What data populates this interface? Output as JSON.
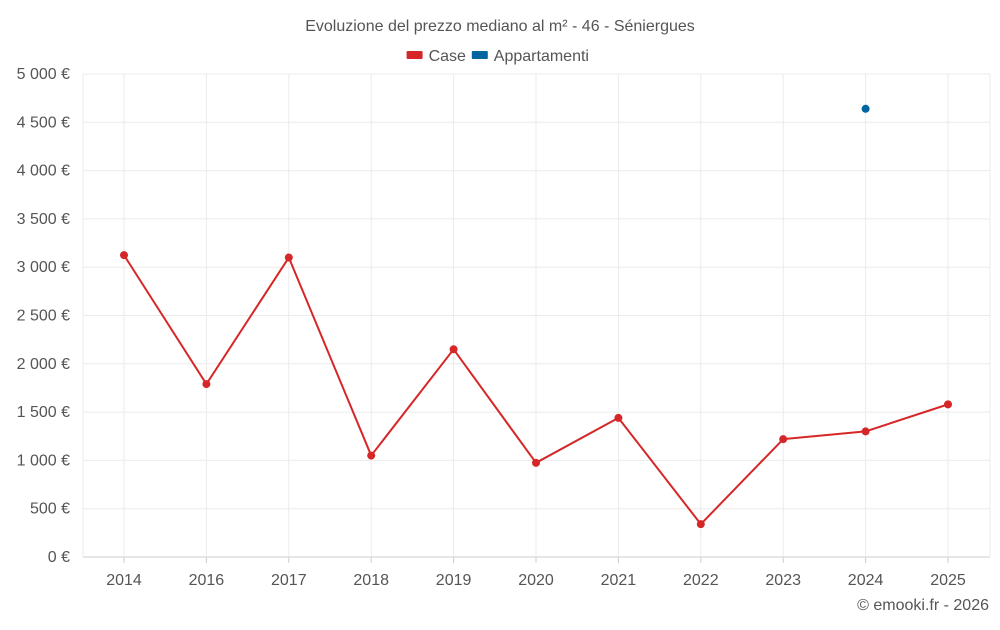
{
  "chart_data": {
    "type": "line",
    "title": "Evoluzione del prezzo mediano al m² - 46 - Séniergues",
    "categories": [
      "2014",
      "2016",
      "2017",
      "2018",
      "2019",
      "2020",
      "2021",
      "2022",
      "2023",
      "2024",
      "2025"
    ],
    "series": [
      {
        "name": "Case",
        "color": "#d62728",
        "values": [
          3125,
          1790,
          3100,
          1050,
          2150,
          975,
          1440,
          340,
          1220,
          1300,
          1580
        ]
      },
      {
        "name": "Appartamenti",
        "color": "#0066a1",
        "values": [
          null,
          null,
          null,
          null,
          null,
          null,
          null,
          null,
          null,
          4640,
          null
        ]
      }
    ],
    "y_ticks": [
      "0 €",
      "500 €",
      "1 000 €",
      "1 500 €",
      "2 000 €",
      "2 500 €",
      "3 000 €",
      "3 500 €",
      "4 000 €",
      "4 500 €",
      "5 000 €"
    ],
    "ylim": [
      0,
      5000
    ],
    "ytick_step": 500,
    "grid": true,
    "legend_position": "top-center",
    "credit": "© emooki.fr - 2026"
  }
}
